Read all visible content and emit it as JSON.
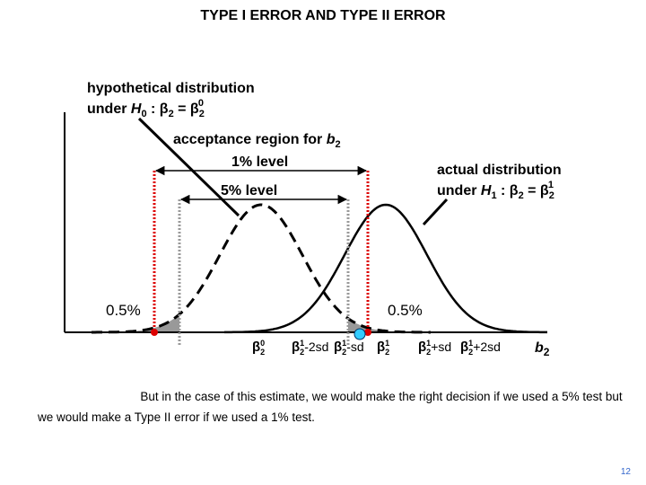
{
  "title": "TYPE I ERROR AND TYPE II ERROR",
  "h0_label": {
    "line1": "hypothetical distribution",
    "line2": [
      "under ",
      "H",
      "0",
      " : ",
      "β",
      "2",
      " = ",
      "β",
      "2",
      "0"
    ]
  },
  "acceptance_label": [
    "acceptance region for ",
    "b",
    "2"
  ],
  "level_1": "1% level",
  "level_5": "5% level",
  "h1_label": {
    "line1": "actual distribution",
    "line2": [
      "under ",
      "H",
      "1",
      " : ",
      "β",
      "2",
      " = ",
      "β",
      "2",
      "1"
    ]
  },
  "tail_left": "0.5%",
  "tail_right": "0.5%",
  "x_labels": [
    [
      "β",
      "2",
      "0",
      ""
    ],
    [
      "β",
      "2",
      "1",
      "-2sd"
    ],
    [
      "β",
      "2",
      "1",
      "-sd"
    ],
    [
      "β",
      "2",
      "1",
      ""
    ],
    [
      "β",
      "2",
      "1",
      "+sd"
    ],
    [
      "β",
      "2",
      "1",
      "+2sd"
    ]
  ],
  "axis_label": [
    "b",
    "2"
  ],
  "caption": [
    "But in the case of this estimate, we would make the right decision if we used a 5% test but",
    "we would make a Type II error if we used a 1% test."
  ],
  "page_number": "12"
}
